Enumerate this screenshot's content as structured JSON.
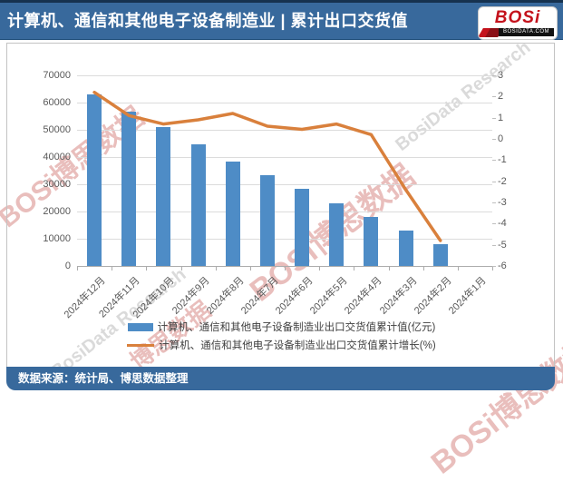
{
  "header": {
    "title": "计算机、通信和其他电子设备制造业 | 累计出口交货值",
    "logo": {
      "text": "BOSi",
      "domain": "BOSIDATA.COM"
    }
  },
  "footer": {
    "source": "数据来源：统计局、博思数据整理"
  },
  "watermarks": [
    "BOSi博思数据",
    "BOSi博思数据",
    "BosiData Research",
    "BosiData Research",
    "BOSi博思数据",
    "博思数据"
  ],
  "chart_data": {
    "type": "bar",
    "combo": "bar+line",
    "categories": [
      "2024年12月",
      "2024年11月",
      "2024年10月",
      "2024年9月",
      "2024年8月",
      "2024年7月",
      "2024年6月",
      "2024年5月",
      "2024年4月",
      "2024年3月",
      "2024年2月",
      "2024年1月"
    ],
    "series": [
      {
        "name": "计算机、通信和其他电子设备制造业出口交货值累计值(亿元)",
        "type": "bar",
        "axis": "left",
        "color": "#4E8CC6",
        "values": [
          63000,
          56700,
          51100,
          44800,
          38300,
          33300,
          28300,
          23100,
          18000,
          13100,
          8000,
          null
        ]
      },
      {
        "name": "计算机、通信和其他电子设备制造业出口交货值累计增长(%)",
        "type": "line",
        "axis": "right",
        "color": "#D9803C",
        "values": [
          2.2,
          1.1,
          0.7,
          0.9,
          1.2,
          0.6,
          0.45,
          0.7,
          0.2,
          -2.4,
          -4.8,
          null
        ]
      }
    ],
    "left_axis": {
      "min": 0,
      "max": 70000,
      "step": 10000,
      "ticks": [
        70000,
        60000,
        50000,
        40000,
        30000,
        20000,
        10000,
        0
      ]
    },
    "right_axis": {
      "min": -6,
      "max": 3,
      "step": 1,
      "ticks": [
        3,
        2,
        1,
        0,
        -1,
        -2,
        -3,
        -4,
        -5,
        -6
      ]
    },
    "grid": true,
    "legend_position": "bottom"
  }
}
